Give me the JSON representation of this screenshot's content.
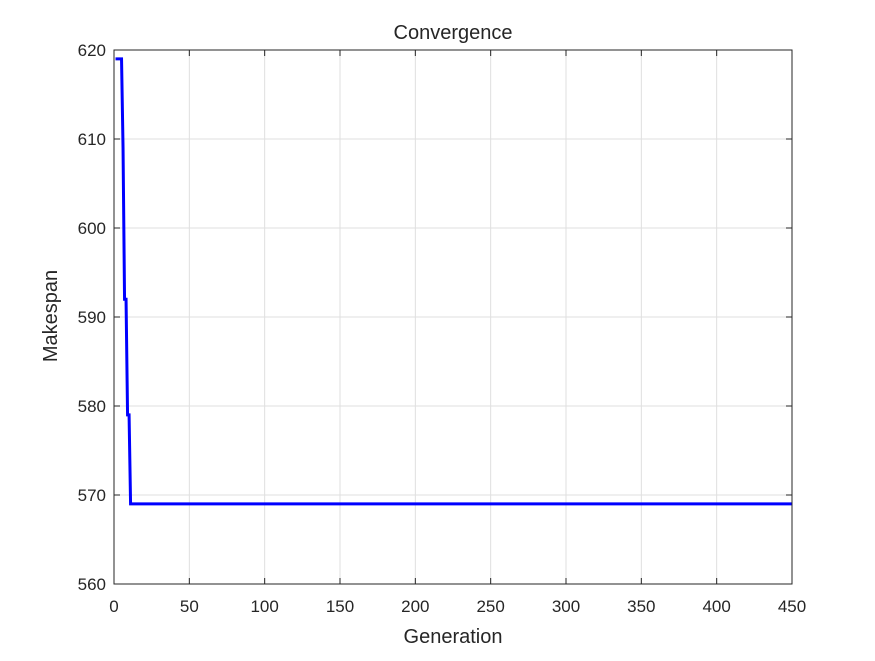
{
  "chart_data": {
    "type": "line",
    "title": "Convergence",
    "xlabel": "Generation",
    "ylabel": "Makespan",
    "xlim": [
      0,
      450
    ],
    "ylim": [
      560,
      620
    ],
    "xticks": [
      "0",
      "50",
      "100",
      "150",
      "200",
      "250",
      "300",
      "350",
      "400",
      "450"
    ],
    "yticks": [
      "560",
      "570",
      "580",
      "590",
      "600",
      "610",
      "620"
    ],
    "grid": true,
    "legend": "none",
    "series": [
      {
        "color": "#0000ff",
        "points": [
          [
            1,
            619
          ],
          [
            5,
            619
          ],
          [
            6,
            609
          ],
          [
            7,
            592
          ],
          [
            8,
            592
          ],
          [
            9,
            579
          ],
          [
            10,
            579
          ],
          [
            11,
            569
          ],
          [
            450,
            569
          ]
        ]
      }
    ]
  },
  "colors": {
    "line": "#0000ff",
    "grid": "#dfdfdf",
    "axis": "#262626",
    "background": "#ffffff"
  }
}
